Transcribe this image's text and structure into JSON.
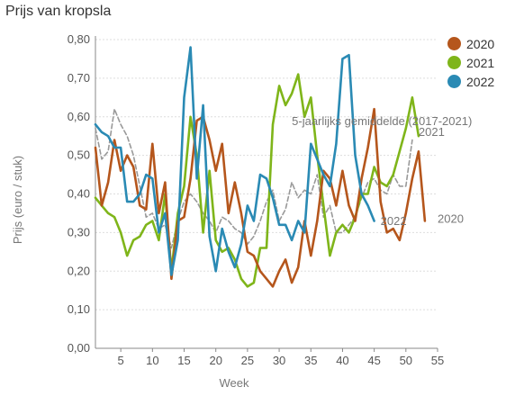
{
  "chart_data": {
    "type": "line",
    "title": "Prijs van kropsla",
    "xlabel": "Week",
    "ylabel": "Prijs (euro / stuk)",
    "xlim": [
      1,
      55
    ],
    "ylim": [
      0,
      0.8
    ],
    "x_ticks": [
      5,
      10,
      15,
      20,
      25,
      30,
      35,
      40,
      45,
      50,
      55
    ],
    "y_ticks": [
      "0,00",
      "0,10",
      "0,20",
      "0,30",
      "0,40",
      "0,50",
      "0,60",
      "0,70",
      "0,80"
    ],
    "grid": "horizontal",
    "legend_position": "top-right",
    "series": [
      {
        "name": "2020",
        "color": "#b5561c",
        "x": [
          1,
          2,
          3,
          4,
          5,
          6,
          7,
          8,
          9,
          10,
          11,
          12,
          13,
          14,
          15,
          16,
          17,
          18,
          19,
          20,
          21,
          22,
          23,
          24,
          25,
          26,
          27,
          28,
          29,
          30,
          31,
          32,
          33,
          34,
          35,
          36,
          37,
          38,
          39,
          40,
          41,
          42,
          43,
          44,
          45,
          46,
          47,
          48,
          49,
          50,
          51,
          52,
          53
        ],
        "values": [
          0.52,
          0.37,
          0.43,
          0.54,
          0.46,
          0.5,
          0.47,
          0.37,
          0.36,
          0.53,
          0.35,
          0.43,
          0.18,
          0.33,
          0.34,
          0.44,
          0.59,
          0.6,
          0.54,
          0.46,
          0.53,
          0.35,
          0.43,
          0.35,
          0.25,
          0.24,
          0.2,
          0.18,
          0.16,
          0.2,
          0.23,
          0.17,
          0.21,
          0.33,
          0.24,
          0.33,
          0.46,
          0.44,
          0.37,
          0.46,
          0.37,
          0.33,
          0.44,
          0.52,
          0.62,
          0.38,
          0.3,
          0.31,
          0.28,
          0.35,
          0.44,
          0.51,
          0.33
        ]
      },
      {
        "name": "2021",
        "color": "#7fb51a",
        "x": [
          1,
          2,
          3,
          4,
          5,
          6,
          7,
          8,
          9,
          10,
          11,
          12,
          13,
          14,
          15,
          16,
          17,
          18,
          19,
          20,
          21,
          22,
          23,
          24,
          25,
          26,
          27,
          28,
          29,
          30,
          31,
          32,
          33,
          34,
          35,
          36,
          37,
          38,
          39,
          40,
          41,
          42,
          43,
          44,
          45,
          46,
          47,
          48,
          49,
          50,
          51,
          52
        ],
        "values": [
          0.39,
          0.37,
          0.35,
          0.34,
          0.3,
          0.24,
          0.28,
          0.29,
          0.32,
          0.33,
          0.28,
          0.4,
          0.2,
          0.35,
          0.42,
          0.6,
          0.5,
          0.3,
          0.46,
          0.28,
          0.25,
          0.26,
          0.23,
          0.18,
          0.16,
          0.17,
          0.26,
          0.26,
          0.58,
          0.68,
          0.63,
          0.66,
          0.71,
          0.6,
          0.65,
          0.5,
          0.37,
          0.24,
          0.3,
          0.32,
          0.3,
          0.34,
          0.4,
          0.4,
          0.47,
          0.43,
          0.42,
          0.45,
          0.51,
          0.57,
          0.65,
          0.55
        ]
      },
      {
        "name": "2022",
        "color": "#2a8ab4",
        "x": [
          1,
          2,
          3,
          4,
          5,
          6,
          7,
          8,
          9,
          10,
          11,
          12,
          13,
          14,
          15,
          16,
          17,
          18,
          19,
          20,
          21,
          22,
          23,
          24,
          25,
          26,
          27,
          28,
          29,
          30,
          31,
          32,
          33,
          34,
          35,
          36,
          37,
          38,
          39,
          40,
          41,
          42,
          43,
          44,
          45
        ],
        "values": [
          0.58,
          0.56,
          0.55,
          0.52,
          0.52,
          0.38,
          0.38,
          0.4,
          0.45,
          0.44,
          0.3,
          0.35,
          0.19,
          0.28,
          0.65,
          0.78,
          0.44,
          0.63,
          0.29,
          0.2,
          0.31,
          0.25,
          0.21,
          0.27,
          0.37,
          0.33,
          0.45,
          0.44,
          0.39,
          0.32,
          0.32,
          0.28,
          0.33,
          0.3,
          0.53,
          0.49,
          0.45,
          0.42,
          0.53,
          0.75,
          0.76,
          0.5,
          0.4,
          0.37,
          0.33
        ]
      },
      {
        "name": "5-jaarlijks gemiddelde (2017-2021)",
        "color": "#999999",
        "dashed": true,
        "x": [
          1,
          2,
          3,
          4,
          5,
          6,
          7,
          8,
          9,
          10,
          11,
          12,
          13,
          14,
          15,
          16,
          17,
          18,
          19,
          20,
          21,
          22,
          23,
          24,
          25,
          26,
          27,
          28,
          29,
          30,
          31,
          32,
          33,
          34,
          35,
          36,
          37,
          38,
          39,
          40,
          41,
          42,
          43,
          44,
          45,
          46,
          47,
          48,
          49,
          50,
          51
        ],
        "values": [
          0.57,
          0.49,
          0.51,
          0.62,
          0.58,
          0.55,
          0.5,
          0.42,
          0.34,
          0.35,
          0.31,
          0.32,
          0.26,
          0.33,
          0.38,
          0.4,
          0.38,
          0.35,
          0.33,
          0.3,
          0.34,
          0.33,
          0.31,
          0.3,
          0.27,
          0.29,
          0.33,
          0.38,
          0.41,
          0.33,
          0.36,
          0.43,
          0.39,
          0.41,
          0.4,
          0.45,
          0.34,
          0.37,
          0.3,
          0.3,
          0.32,
          0.34,
          0.39,
          0.43,
          0.44,
          0.41,
          0.4,
          0.45,
          0.42,
          0.42,
          0.54
        ]
      }
    ],
    "annotations": [
      {
        "text": "5-jaarlijks gemiddelde (2017-2021)",
        "x": 32,
        "y": 0.578
      },
      {
        "text": "2021",
        "x": 52,
        "y": 0.55
      },
      {
        "text": "2022",
        "x": 46,
        "y": 0.32
      },
      {
        "text": "2020",
        "x": 55,
        "y": 0.325
      }
    ]
  },
  "legend": [
    {
      "label": "2020",
      "color": "#b5561c"
    },
    {
      "label": "2021",
      "color": "#7fb51a"
    },
    {
      "label": "2022",
      "color": "#2a8ab4"
    }
  ]
}
